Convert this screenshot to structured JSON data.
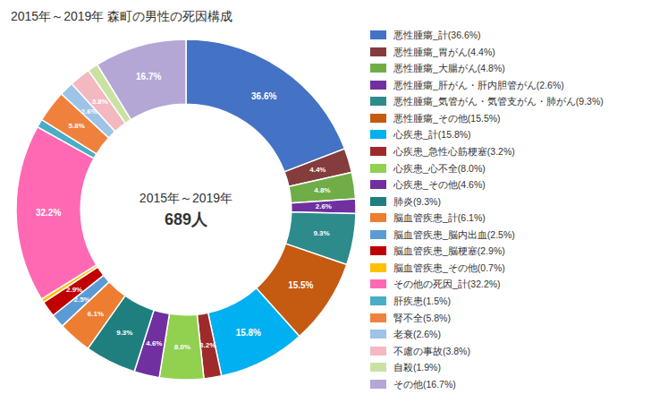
{
  "chart_data": {
    "type": "pie",
    "title": "2015年～2019年 森町の男性の死因構成",
    "annotations": [
      "2015年～2019年",
      "689人"
    ],
    "categories": [
      "悪性腫瘍_計(36.6%)",
      "悪性腫瘍_胃がん(4.4%)",
      "悪性腫瘍_大腸がん(4.8%)",
      "悪性腫瘍_肝がん・肝内胆管がん(2.6%)",
      "悪性腫瘍_気管がん・気管支がん・肺がん(9.3%)",
      "悪性腫瘍_その他(15.5%)",
      "心疾患_計(15.8%)",
      "心疾患_急性心筋梗塞(3.2%)",
      "心疾患_心不全(8.0%)",
      "心疾患_その他(4.6%)",
      "肺炎(9.3%)",
      "脳血管疾患_計(6.1%)",
      "脳血管疾患_脳内出血(2.5%)",
      "脳血管疾患_脳梗塞(2.9%)",
      "脳血管疾患_その他(0.7%)",
      "その他の死因_計(32.2%)",
      "肝疾患(1.5%)",
      "腎不全(5.8%)",
      "老衰(2.6%)",
      "不慮の事故(3.8%)",
      "自殺(1.9%)",
      "その他(16.7%)"
    ],
    "values": [
      36.6,
      4.4,
      4.8,
      2.6,
      9.3,
      15.5,
      15.8,
      3.2,
      8.0,
      4.6,
      9.3,
      6.1,
      2.5,
      2.9,
      0.7,
      32.2,
      1.5,
      5.8,
      2.6,
      3.8,
      1.9,
      16.7
    ],
    "value_labels": [
      "36.6%",
      "4.4%",
      "4.8%",
      "2.6%",
      "9.3%",
      "15.5%",
      "15.8%",
      "3.2%",
      "8.0%",
      "4.6%",
      "9.3%",
      "6.1%",
      "2.5%",
      "2.9%",
      null,
      "32.2%",
      null,
      "5.8%",
      "2.6%",
      "3.8%",
      null,
      "16.7%"
    ],
    "colors": [
      "#4472C4",
      "#843C3C",
      "#70AD47",
      "#7030A0",
      "#2E8B8B",
      "#C55A11",
      "#00B0F0",
      "#9E2A2A",
      "#92D050",
      "#7030A0",
      "#1F7F7F",
      "#ED7D31",
      "#5B9BD5",
      "#C00000",
      "#FFC000",
      "#FF69B4",
      "#4BACC6",
      "#F0813C",
      "#9DC3E6",
      "#F4B8C1",
      "#C9E2A4",
      "#B4A7D6"
    ],
    "legend": "right"
  }
}
